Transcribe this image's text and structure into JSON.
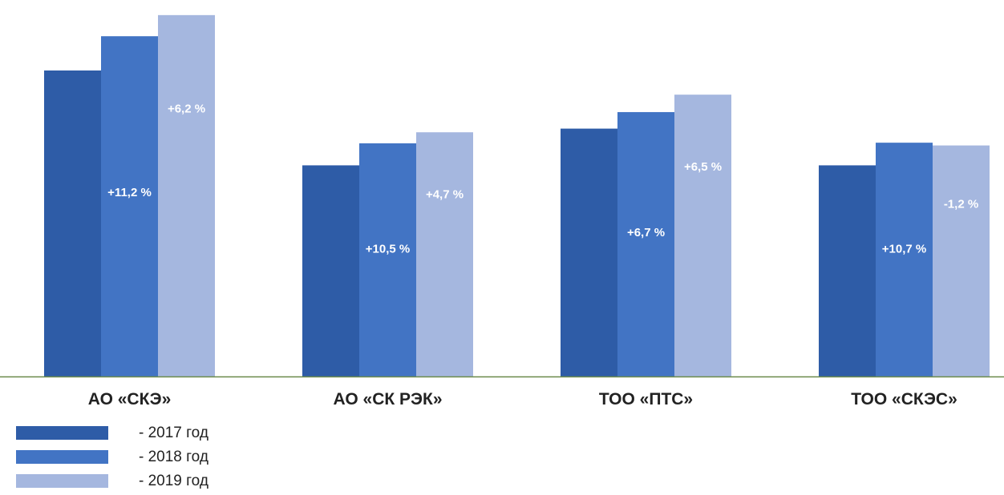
{
  "chart_data": {
    "type": "bar",
    "categories": [
      "АО «СКЭ»",
      "АО «СК РЭК»",
      "ТОО «ПТС»",
      "ТОО «СКЭС»"
    ],
    "series": [
      {
        "name": "- 2017 год",
        "color": "#2e5ca7",
        "values": [
          100.0,
          69.0,
          81.0,
          69.0
        ]
      },
      {
        "name": "- 2018 год",
        "color": "#4274c4",
        "values": [
          111.2,
          76.2,
          86.4,
          76.4
        ]
      },
      {
        "name": "- 2019 год",
        "color": "#a5b7df",
        "values": [
          118.1,
          79.8,
          92.1,
          75.5
        ]
      }
    ],
    "bar_labels": {
      "2018": [
        "+11,2 %",
        "+10,5 %",
        "+6,7 %",
        "+10,7 %"
      ],
      "2019": [
        "+6,2 %",
        "+4,7 %",
        "+6,5 %",
        "-1,2 %"
      ]
    },
    "ylim": [
      0,
      120
    ],
    "grid": false,
    "legend_position": "bottom-left"
  }
}
